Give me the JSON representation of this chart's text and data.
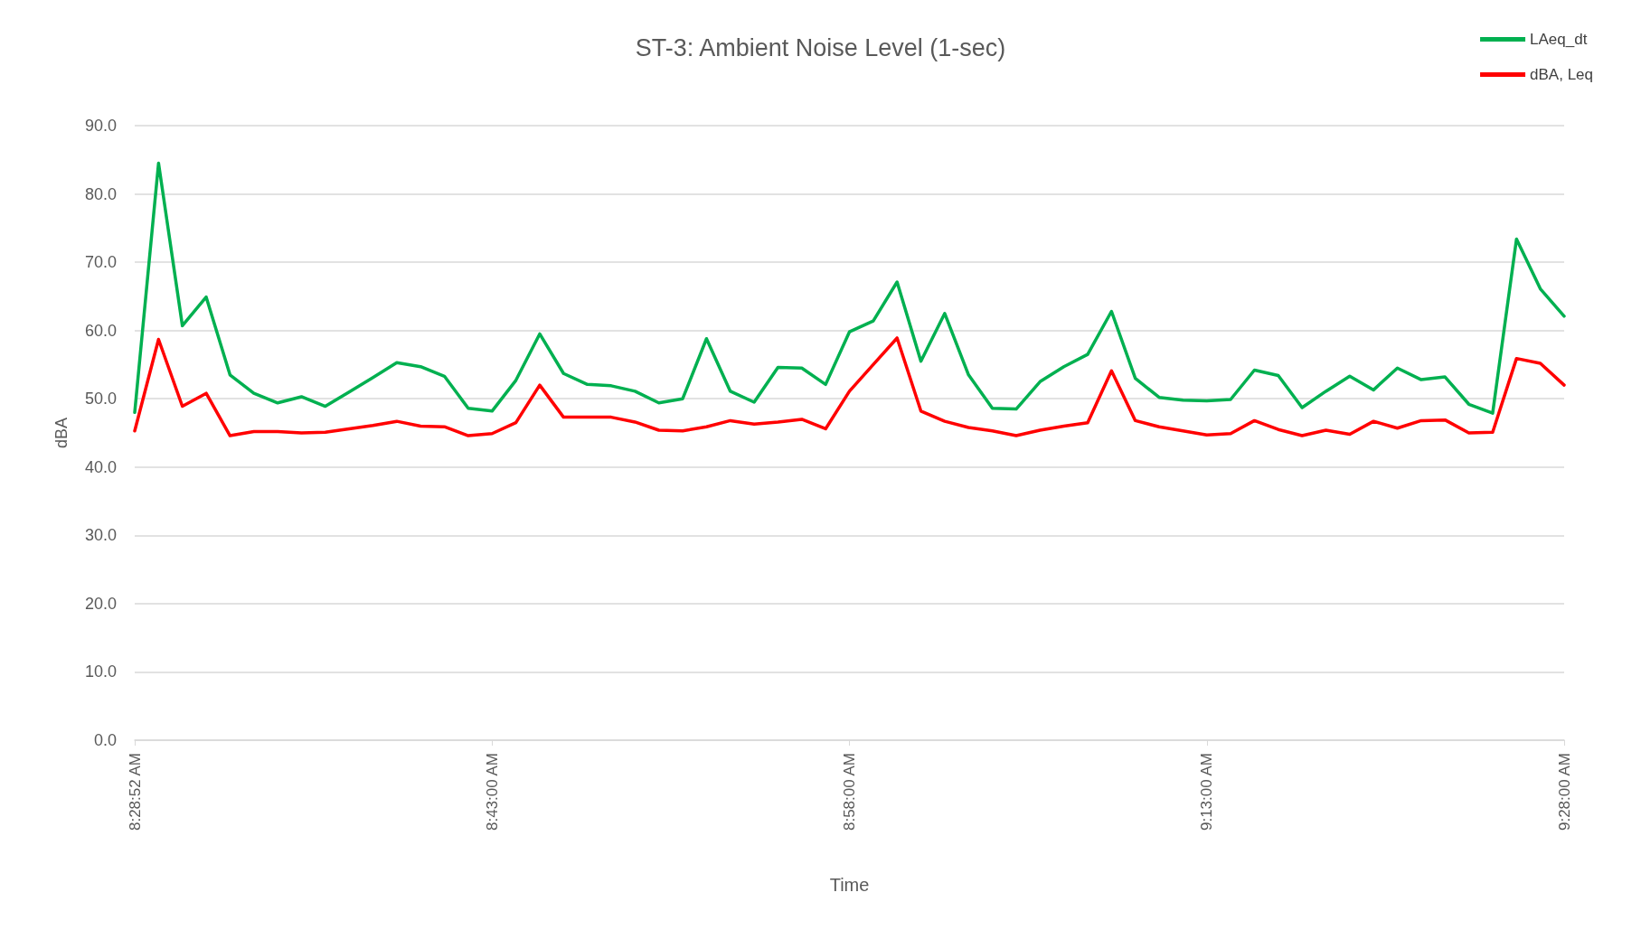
{
  "chart_data": {
    "type": "line",
    "title": "ST-3: Ambient Noise Level (1-sec)",
    "xlabel": "Time",
    "ylabel": "dBA",
    "categories": [
      "8:28:52 AM",
      null,
      null,
      null,
      null,
      null,
      null,
      null,
      null,
      null,
      null,
      null,
      null,
      null,
      null,
      "8:43:00 AM",
      null,
      null,
      null,
      null,
      null,
      null,
      null,
      null,
      null,
      null,
      null,
      null,
      null,
      null,
      "8:58:00 AM",
      null,
      null,
      null,
      null,
      null,
      null,
      null,
      null,
      null,
      null,
      null,
      null,
      null,
      null,
      "9:13:00 AM",
      null,
      null,
      null,
      null,
      null,
      null,
      null,
      null,
      null,
      null,
      null,
      null,
      null,
      null,
      "9:28:00 AM"
    ],
    "series": [
      {
        "name": "LAeq_dt",
        "color": "#00b050",
        "values": [
          48.0,
          84.5,
          60.7,
          64.9,
          53.5,
          50.8,
          49.4,
          50.3,
          48.9,
          51.0,
          53.1,
          55.3,
          54.7,
          53.3,
          48.6,
          48.2,
          52.7,
          59.5,
          53.7,
          52.1,
          51.9,
          51.1,
          49.4,
          50.0,
          58.8,
          51.1,
          49.5,
          54.6,
          54.5,
          52.1,
          59.8,
          61.4,
          67.1,
          55.5,
          62.5,
          53.5,
          48.6,
          48.5,
          52.5,
          54.7,
          56.5,
          62.8,
          53.0,
          50.2,
          49.8,
          49.7,
          49.9,
          54.2,
          53.4,
          48.7,
          51.1,
          53.3,
          51.3,
          54.5,
          52.8,
          53.2,
          49.2,
          47.9,
          73.4,
          66.1,
          62.1
        ]
      },
      {
        "name": "dBA, Leq",
        "color": "#ff0000",
        "values": [
          45.3,
          58.7,
          48.9,
          50.8,
          44.6,
          45.2,
          45.2,
          45.0,
          45.1,
          45.6,
          46.1,
          46.7,
          46.0,
          45.9,
          44.6,
          44.9,
          46.5,
          52.0,
          47.3,
          47.3,
          47.3,
          46.6,
          45.4,
          45.3,
          45.9,
          46.8,
          46.3,
          46.6,
          47.0,
          45.6,
          51.1,
          55.0,
          58.9,
          48.2,
          46.7,
          45.8,
          45.3,
          44.6,
          45.4,
          46.0,
          46.5,
          54.1,
          46.8,
          45.9,
          45.3,
          44.7,
          44.9,
          46.8,
          45.5,
          44.6,
          45.4,
          44.8,
          46.7,
          45.7,
          46.8,
          46.9,
          45.0,
          45.1,
          55.9,
          55.2,
          52.0
        ]
      }
    ],
    "ylim": [
      0,
      90
    ],
    "yticks": [
      {
        "value": 0,
        "label": "0.0"
      },
      {
        "value": 10,
        "label": "10.0"
      },
      {
        "value": 20,
        "label": "20.0"
      },
      {
        "value": 30,
        "label": "30.0"
      },
      {
        "value": 40,
        "label": "40.0"
      },
      {
        "value": 50,
        "label": "50.0"
      },
      {
        "value": 60,
        "label": "60.0"
      },
      {
        "value": 70,
        "label": "70.0"
      },
      {
        "value": 80,
        "label": "80.0"
      },
      {
        "value": 90,
        "label": "90.0"
      }
    ],
    "grid": "y",
    "legend": "top right",
    "marker": "none",
    "line_style": "solid"
  }
}
